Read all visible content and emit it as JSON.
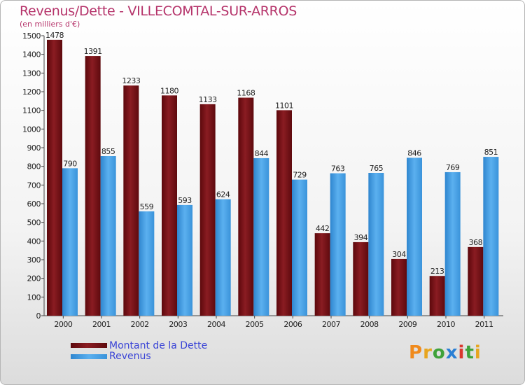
{
  "title": "Revenus/Dette - VILLECOMTAL-SUR-ARROS",
  "subtitle": "(en milliers d'€)",
  "logo": "Proxiti",
  "colors": {
    "dette": "#7a1016",
    "revenus": "#4aa3e8",
    "text_title": "#b5336a",
    "legend_text": "#3a44d6"
  },
  "chart_data": {
    "type": "bar",
    "title": "Revenus/Dette - VILLECOMTAL-SUR-ARROS",
    "subtitle": "(en milliers d'€)",
    "categories": [
      "2000",
      "2001",
      "2002",
      "2003",
      "2004",
      "2005",
      "2006",
      "2007",
      "2008",
      "2009",
      "2010",
      "2011"
    ],
    "series": [
      {
        "name": "Montant de la Dette",
        "values": [
          1478,
          1391,
          1233,
          1180,
          1133,
          1168,
          1101,
          442,
          394,
          304,
          213,
          368
        ]
      },
      {
        "name": "Revenus",
        "values": [
          790,
          855,
          559,
          593,
          624,
          844,
          729,
          763,
          765,
          846,
          769,
          851
        ]
      }
    ],
    "ylim": [
      0,
      1500
    ],
    "yticks": [
      0,
      100,
      200,
      300,
      400,
      500,
      600,
      700,
      800,
      900,
      1000,
      1100,
      1200,
      1300,
      1400,
      1500
    ],
    "grid": false,
    "legend_position": "bottom-left"
  }
}
